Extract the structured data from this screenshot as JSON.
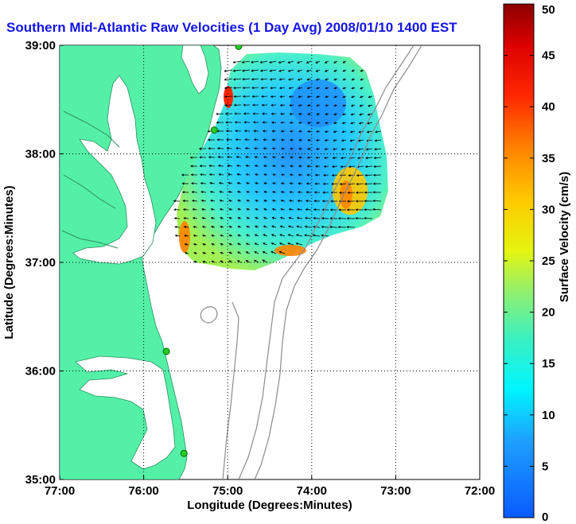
{
  "title": "Southern Mid-Atlantic Raw Velocities (1 Day Avg) 2008/01/10 1400 EST",
  "title_color": "#1414e6",
  "map": {
    "xlabel": "Longitude (Degrees:Minutes)",
    "ylabel": "Latitude (Degrees:Minutes)",
    "lon_range": [
      -77,
      -72
    ],
    "lat_range": [
      35,
      39
    ],
    "x_ticks": [
      {
        "value": -77,
        "label": "77:00"
      },
      {
        "value": -76,
        "label": "76:00"
      },
      {
        "value": -75,
        "label": "75:00"
      },
      {
        "value": -74,
        "label": "74:00"
      },
      {
        "value": -73,
        "label": "73:00"
      },
      {
        "value": -72,
        "label": "72:00"
      }
    ],
    "y_ticks": [
      {
        "value": 39,
        "label": "39:00"
      },
      {
        "value": 38,
        "label": "38:00"
      },
      {
        "value": 37,
        "label": "37:00"
      },
      {
        "value": 36,
        "label": "36:00"
      },
      {
        "value": 35,
        "label": "35:00"
      }
    ],
    "grid": true,
    "land_color": "#55f0a8",
    "bathymetry_color": "#8c8c8c",
    "station_color": "#22cc22",
    "arrow_color": "#000000"
  },
  "colorbar": {
    "label": "Surface Velocity (cm/s)",
    "min": 0,
    "max": 50,
    "ticks": [
      {
        "value": 0,
        "label": "0"
      },
      {
        "value": 5,
        "label": "5"
      },
      {
        "value": 10,
        "label": "10"
      },
      {
        "value": 15,
        "label": "15"
      },
      {
        "value": 20,
        "label": "20"
      },
      {
        "value": 25,
        "label": "25"
      },
      {
        "value": 30,
        "label": "30"
      },
      {
        "value": 35,
        "label": "35"
      },
      {
        "value": 40,
        "label": "40"
      },
      {
        "value": 45,
        "label": "45"
      },
      {
        "value": 50,
        "label": "50"
      }
    ],
    "colormap": "jet"
  },
  "stations": [
    {
      "lon": -74.87,
      "lat": 38.99
    },
    {
      "lon": -75.16,
      "lat": 38.22
    },
    {
      "lon": -75.73,
      "lat": 36.18
    },
    {
      "lon": -75.52,
      "lat": 35.24
    }
  ]
}
